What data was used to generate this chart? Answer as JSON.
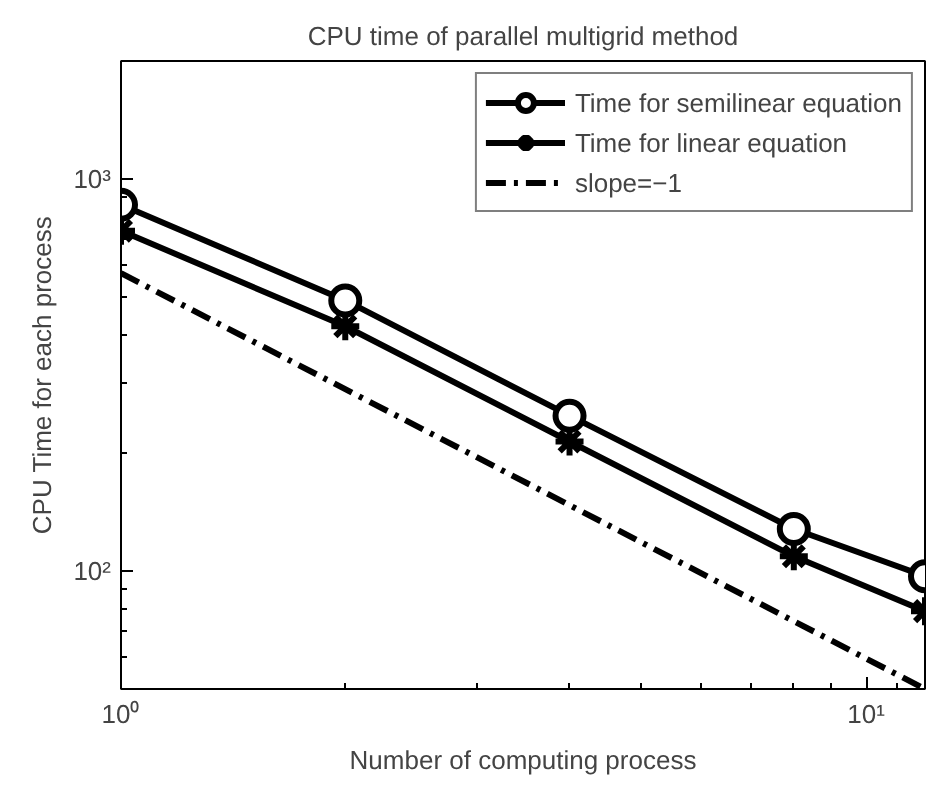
{
  "chart_data": {
    "type": "line",
    "title": "CPU time of parallel multigrid method",
    "xlabel": "Number of computing process",
    "ylabel": "CPU Time for each process",
    "x": [
      1,
      2,
      4,
      8,
      12
    ],
    "series": [
      {
        "name": "Time for semilinear equation",
        "color": "#000000",
        "marker": "circle",
        "line_style": "solid",
        "values": [
          860,
          490,
          249,
          128,
          97
        ]
      },
      {
        "name": "Time for linear equation",
        "color": "#000000",
        "marker": "cross",
        "line_style": "solid",
        "values": [
          738,
          421,
          214,
          109,
          79
        ]
      },
      {
        "name": "slope=−1",
        "color": "#000000",
        "marker": "none",
        "line_style": "dashdot",
        "x": [
          1,
          12
        ],
        "values": [
          575,
          50
        ]
      }
    ],
    "log": "xy",
    "xlim": [
      1,
      12
    ],
    "ylim": [
      50,
      2000
    ],
    "xticks": [
      {
        "value": 1,
        "label": "10⁰"
      },
      {
        "value": 10,
        "label": "10¹"
      }
    ],
    "yticks": [
      {
        "value": 100,
        "label": "10²"
      },
      {
        "value": 1000,
        "label": "10³"
      }
    ],
    "grid": false,
    "legend": "top right"
  }
}
